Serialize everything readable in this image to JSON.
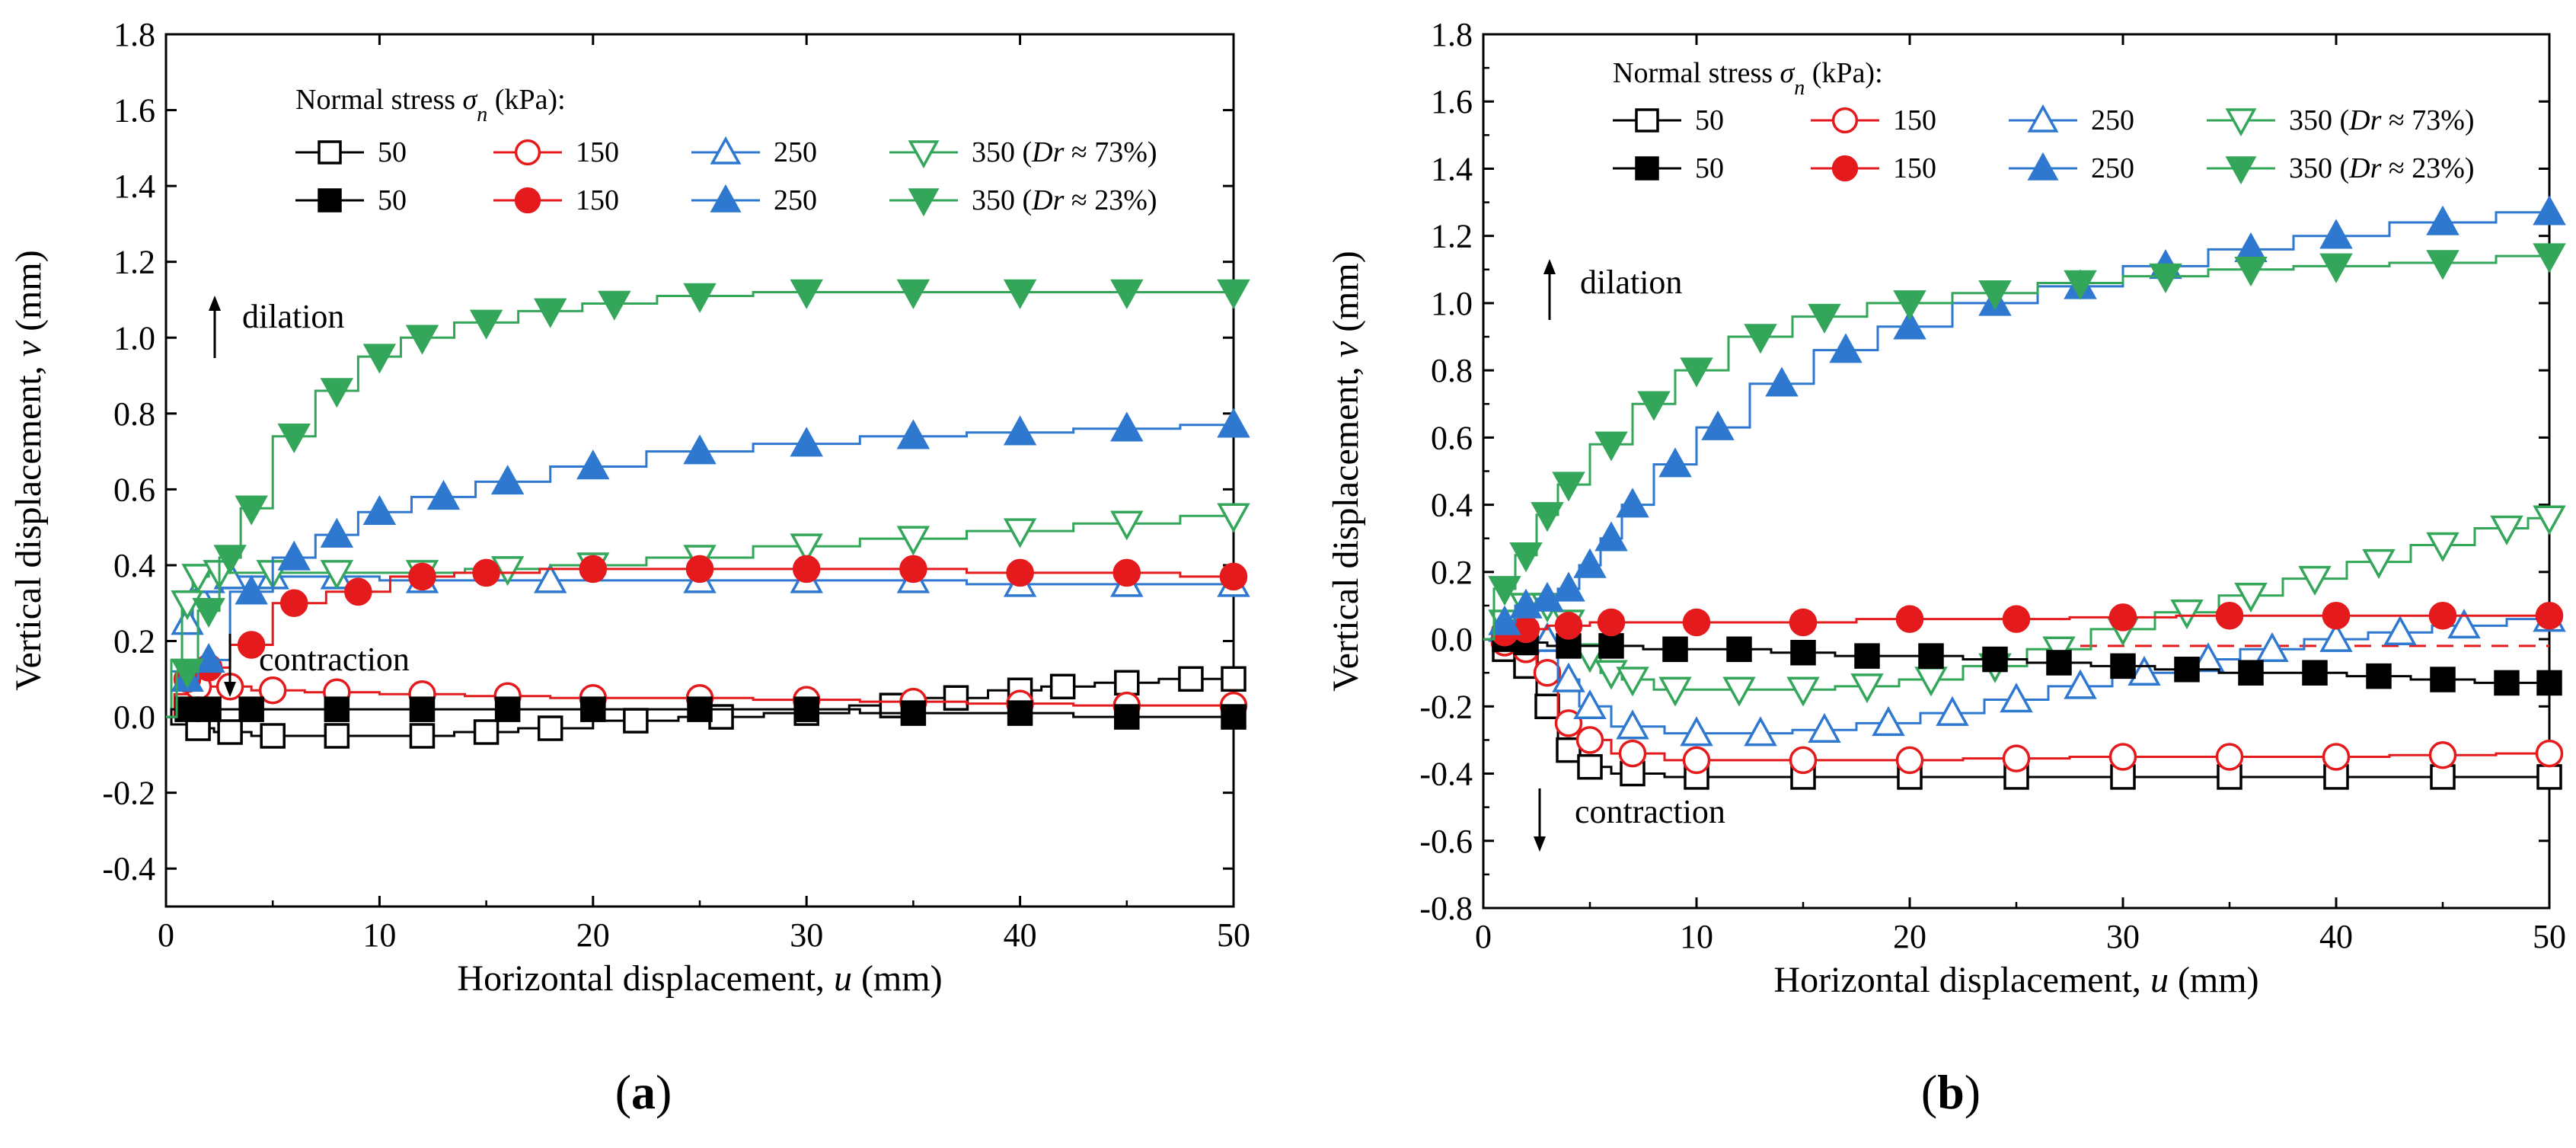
{
  "chart_data": [
    {
      "type": "line",
      "panel": "(a)",
      "xlabel": "Horizontal displacement, ",
      "xlabel_var": "u",
      "xlabel_unit": " (mm)",
      "ylabel": "Vertical displacement, ",
      "ylabel_var": "v",
      "ylabel_unit": " (mm)",
      "xlim": [
        0,
        50
      ],
      "ylim": [
        -0.5,
        1.8
      ],
      "xticks": [
        0,
        10,
        20,
        30,
        40,
        50
      ],
      "xtick_labels": [
        "0",
        "10",
        "20",
        "30",
        "40",
        "50"
      ],
      "yticks": [
        -0.4,
        -0.2,
        0.0,
        0.2,
        0.4,
        0.6,
        0.8,
        1.0,
        1.2,
        1.4,
        1.6,
        1.8
      ],
      "ytick_labels": [
        "-0.4",
        "-0.2",
        "0.0",
        "0.2",
        "0.4",
        "0.6",
        "0.8",
        "1.0",
        "1.2",
        "1.4",
        "1.6",
        "1.8"
      ],
      "legend_title": "Normal stress ",
      "legend_title_var": "σ",
      "legend_title_sub": "n",
      "legend_title_unit": " (kPa):",
      "dilation_label": "dilation",
      "contraction_label": "contraction",
      "dense_suffix": "(Dr ≈ 73%)",
      "loose_suffix": "(Dr ≈ 23%)",
      "series": [
        {
          "name": "50",
          "density": "Dr ≈ 73%",
          "color": "#000000",
          "marker": "square",
          "filled": false,
          "x": [
            0,
            0.5,
            1.5,
            3,
            5,
            8,
            12,
            15,
            18,
            22,
            26,
            30,
            34,
            37,
            40,
            42,
            45,
            48,
            50
          ],
          "y": [
            0,
            -0.02,
            -0.03,
            -0.04,
            -0.05,
            -0.05,
            -0.05,
            -0.04,
            -0.03,
            -0.01,
            0.0,
            0.01,
            0.03,
            0.05,
            0.07,
            0.08,
            0.09,
            0.1,
            0.1
          ]
        },
        {
          "name": "150",
          "density": "Dr ≈ 73%",
          "color": "#e41a1c",
          "marker": "circle",
          "filled": false,
          "x": [
            0,
            0.8,
            1.5,
            3,
            5,
            8,
            12,
            16,
            20,
            25,
            30,
            35,
            40,
            45,
            50
          ],
          "y": [
            0,
            0.06,
            0.08,
            0.08,
            0.07,
            0.065,
            0.06,
            0.055,
            0.05,
            0.05,
            0.045,
            0.04,
            0.035,
            0.03,
            0.03
          ]
        },
        {
          "name": "250",
          "density": "Dr ≈ 73%",
          "color": "#2f78d0",
          "marker": "triangle-up",
          "filled": false,
          "x": [
            0,
            0.5,
            1,
            1.5,
            2,
            3,
            5,
            8,
            12,
            18,
            25,
            30,
            35,
            40,
            45,
            50
          ],
          "y": [
            0,
            0.12,
            0.25,
            0.33,
            0.36,
            0.37,
            0.37,
            0.37,
            0.36,
            0.36,
            0.36,
            0.36,
            0.36,
            0.35,
            0.35,
            0.35
          ]
        },
        {
          "name": "350",
          "density": "Dr ≈ 73%",
          "color": "#33a65a",
          "marker": "triangle-down",
          "filled": false,
          "x": [
            0,
            0.5,
            1,
            1.5,
            2.5,
            5,
            8,
            12,
            16,
            20,
            25,
            30,
            35,
            40,
            45,
            50
          ],
          "y": [
            0,
            0.15,
            0.3,
            0.37,
            0.38,
            0.38,
            0.38,
            0.38,
            0.39,
            0.4,
            0.42,
            0.45,
            0.47,
            0.49,
            0.51,
            0.53
          ]
        },
        {
          "name": "50",
          "density": "Dr ≈ 23%",
          "color": "#000000",
          "marker": "square",
          "filled": true,
          "x": [
            0,
            0.5,
            1,
            2,
            4,
            8,
            12,
            16,
            20,
            25,
            30,
            35,
            40,
            45,
            50
          ],
          "y": [
            0,
            0.02,
            0.02,
            0.02,
            0.02,
            0.02,
            0.02,
            0.02,
            0.02,
            0.02,
            0.02,
            0.01,
            0.01,
            0.0,
            0.0
          ]
        },
        {
          "name": "150",
          "density": "Dr ≈ 23%",
          "color": "#e41a1c",
          "marker": "circle",
          "filled": true,
          "x": [
            0,
            1,
            2,
            4,
            6,
            9,
            12,
            15,
            20,
            25,
            30,
            35,
            40,
            45,
            50
          ],
          "y": [
            0,
            0.1,
            0.13,
            0.19,
            0.3,
            0.33,
            0.37,
            0.38,
            0.39,
            0.39,
            0.39,
            0.39,
            0.38,
            0.38,
            0.37
          ]
        },
        {
          "name": "250",
          "density": "Dr ≈ 23%",
          "color": "#2f78d0",
          "marker": "triangle-up",
          "filled": true,
          "x": [
            0,
            1,
            2,
            4,
            6,
            8,
            10,
            13,
            16,
            20,
            25,
            30,
            35,
            40,
            45,
            50
          ],
          "y": [
            0,
            0.1,
            0.15,
            0.33,
            0.42,
            0.48,
            0.54,
            0.58,
            0.62,
            0.66,
            0.7,
            0.72,
            0.74,
            0.75,
            0.76,
            0.77
          ]
        },
        {
          "name": "350",
          "density": "Dr ≈ 23%",
          "color": "#33a65a",
          "marker": "triangle-down",
          "filled": true,
          "x": [
            0,
            1,
            2,
            3,
            4,
            6,
            8,
            10,
            12,
            15,
            18,
            21,
            25,
            30,
            35,
            40,
            45,
            50
          ],
          "y": [
            0,
            0.12,
            0.28,
            0.42,
            0.55,
            0.74,
            0.86,
            0.95,
            1.0,
            1.04,
            1.07,
            1.09,
            1.11,
            1.12,
            1.12,
            1.12,
            1.12,
            1.12
          ]
        }
      ]
    },
    {
      "type": "line",
      "panel": "(b)",
      "xlabel": "Horizontal displacement, ",
      "xlabel_var": "u",
      "xlabel_unit": " (mm)",
      "ylabel": "Vertical displacement, ",
      "ylabel_var": "v",
      "ylabel_unit": " (mm)",
      "xlim": [
        0,
        50
      ],
      "ylim": [
        -0.8,
        1.8
      ],
      "xticks": [
        0,
        10,
        20,
        30,
        40,
        50
      ],
      "xtick_labels": [
        "0",
        "10",
        "20",
        "30",
        "40",
        "50"
      ],
      "yticks": [
        -0.8,
        -0.6,
        -0.4,
        -0.2,
        0.0,
        0.2,
        0.4,
        0.6,
        0.8,
        1.0,
        1.2,
        1.4,
        1.6,
        1.8
      ],
      "ytick_labels": [
        "-0.8",
        "-0.6",
        "-0.4",
        "-0.2",
        "0.0",
        "0.2",
        "0.4",
        "0.6",
        "0.8",
        "1.0",
        "1.2",
        "1.4",
        "1.6",
        "1.8"
      ],
      "legend_title": "Normal stress ",
      "legend_title_var": "σ",
      "legend_title_sub": "n",
      "legend_title_unit": " (kPa):",
      "dilation_label": "dilation",
      "contraction_label": "contraction",
      "dense_suffix": "(Dr ≈ 73%)",
      "loose_suffix": "(Dr ≈ 23%)",
      "series": [
        {
          "name": "50",
          "density": "Dr ≈ 73%",
          "color": "#000000",
          "marker": "square",
          "filled": false,
          "x": [
            0,
            1,
            2,
            3,
            4,
            5,
            7,
            10,
            15,
            20,
            25,
            30,
            35,
            40,
            45,
            50
          ],
          "y": [
            0,
            -0.03,
            -0.08,
            -0.2,
            -0.33,
            -0.38,
            -0.4,
            -0.41,
            -0.41,
            -0.41,
            -0.41,
            -0.41,
            -0.41,
            -0.41,
            -0.41,
            -0.41
          ]
        },
        {
          "name": "150",
          "density": "Dr ≈ 73%",
          "color": "#e41a1c",
          "marker": "circle",
          "filled": false,
          "x": [
            0,
            1,
            2,
            3,
            4,
            5,
            7,
            10,
            15,
            20,
            25,
            30,
            35,
            40,
            45,
            50
          ],
          "y": [
            0,
            -0.01,
            -0.03,
            -0.1,
            -0.25,
            -0.3,
            -0.34,
            -0.36,
            -0.36,
            -0.36,
            -0.355,
            -0.35,
            -0.35,
            -0.35,
            -0.345,
            -0.34
          ]
        },
        {
          "name": "250",
          "density": "Dr ≈ 73%",
          "color": "#2f78d0",
          "marker": "triangle-up",
          "filled": false,
          "x": [
            0,
            1,
            2,
            3,
            4,
            5,
            7,
            10,
            13,
            16,
            19,
            22,
            25,
            28,
            31,
            34,
            37,
            40,
            43,
            46,
            50
          ],
          "y": [
            0,
            0.03,
            0.03,
            0.0,
            -0.12,
            -0.2,
            -0.26,
            -0.28,
            -0.28,
            -0.27,
            -0.25,
            -0.22,
            -0.18,
            -0.14,
            -0.1,
            -0.06,
            -0.03,
            0.0,
            0.02,
            0.04,
            0.06
          ]
        },
        {
          "name": "350",
          "density": "Dr ≈ 73%",
          "color": "#33a65a",
          "marker": "triangle-down",
          "filled": false,
          "x": [
            0,
            1,
            2,
            3,
            4,
            5,
            6,
            7,
            9,
            12,
            15,
            18,
            21,
            24,
            27,
            30,
            33,
            36,
            39,
            42,
            45,
            48,
            50
          ],
          "y": [
            0,
            0.05,
            0.1,
            0.1,
            0.05,
            -0.05,
            -0.1,
            -0.12,
            -0.15,
            -0.15,
            -0.15,
            -0.14,
            -0.12,
            -0.08,
            -0.03,
            0.03,
            0.08,
            0.13,
            0.18,
            0.23,
            0.28,
            0.33,
            0.36
          ]
        },
        {
          "name": "50",
          "density": "Dr ≈ 23%",
          "color": "#000000",
          "marker": "square",
          "filled": true,
          "x": [
            0,
            1,
            2,
            4,
            6,
            9,
            12,
            15,
            18,
            21,
            24,
            27,
            30,
            33,
            36,
            39,
            42,
            45,
            48,
            50
          ],
          "y": [
            0,
            0.0,
            -0.01,
            -0.02,
            -0.02,
            -0.03,
            -0.03,
            -0.04,
            -0.05,
            -0.05,
            -0.06,
            -0.07,
            -0.08,
            -0.09,
            -0.1,
            -0.1,
            -0.11,
            -0.12,
            -0.13,
            -0.13
          ]
        },
        {
          "name": "150",
          "density": "Dr ≈ 23%",
          "color": "#e41a1c",
          "marker": "circle",
          "filled": true,
          "x": [
            0,
            1,
            2,
            4,
            6,
            10,
            15,
            20,
            25,
            30,
            35,
            40,
            45,
            50
          ],
          "y": [
            0,
            0.02,
            0.03,
            0.04,
            0.05,
            0.05,
            0.05,
            0.06,
            0.06,
            0.065,
            0.07,
            0.07,
            0.07,
            0.07
          ]
        },
        {
          "name": "250",
          "density": "Dr ≈ 23%",
          "color": "#2f78d0",
          "marker": "triangle-up",
          "filled": true,
          "x": [
            0,
            1,
            2,
            3,
            4,
            5,
            6,
            7,
            9,
            11,
            14,
            17,
            20,
            24,
            28,
            32,
            36,
            40,
            45,
            50
          ],
          "y": [
            0,
            0.05,
            0.1,
            0.12,
            0.15,
            0.22,
            0.3,
            0.4,
            0.52,
            0.63,
            0.76,
            0.86,
            0.93,
            1.0,
            1.05,
            1.11,
            1.16,
            1.2,
            1.24,
            1.27
          ]
        },
        {
          "name": "350",
          "density": "Dr ≈ 23%",
          "color": "#33a65a",
          "marker": "triangle-down",
          "filled": true,
          "x": [
            0,
            1,
            2,
            3,
            4,
            6,
            8,
            10,
            13,
            16,
            20,
            24,
            28,
            32,
            36,
            40,
            45,
            50
          ],
          "y": [
            0,
            0.15,
            0.25,
            0.37,
            0.46,
            0.58,
            0.7,
            0.8,
            0.9,
            0.96,
            1.0,
            1.03,
            1.06,
            1.08,
            1.1,
            1.11,
            1.12,
            1.14
          ]
        }
      ]
    }
  ]
}
